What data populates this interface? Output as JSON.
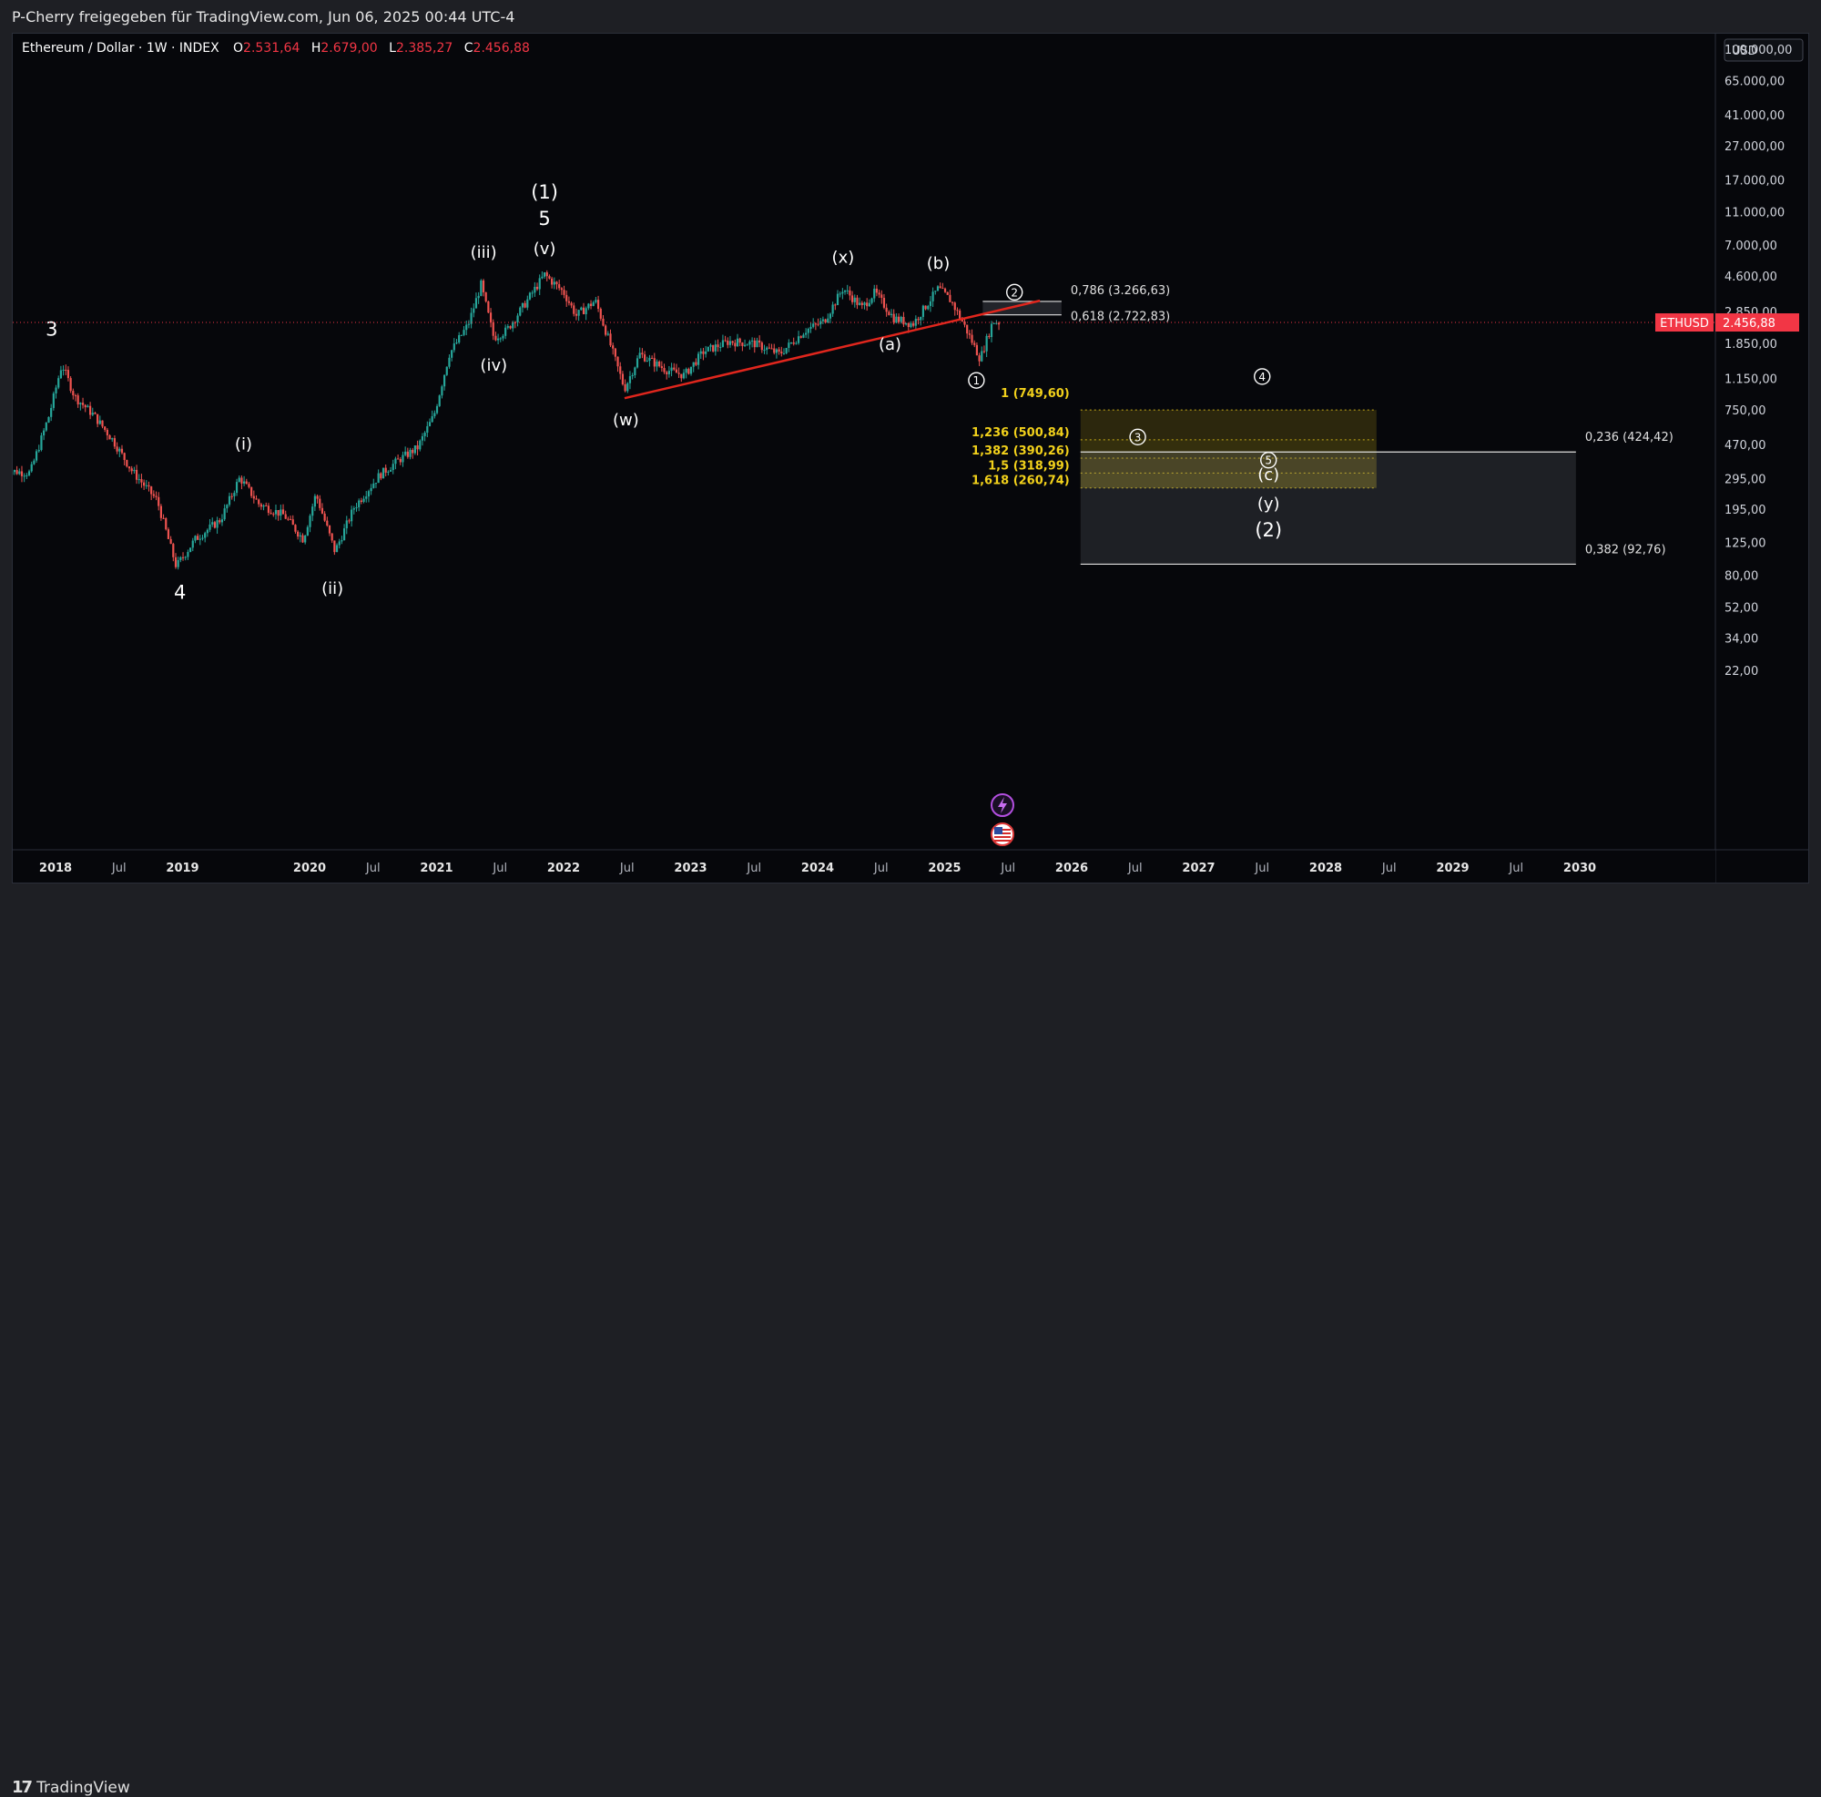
{
  "header": {
    "share_text": "P-Cherry freigegeben für TradingView.com, Jun 06, 2025 00:44 UTC-4"
  },
  "legend": {
    "symbol": "Ethereum / Dollar · 1W · INDEX",
    "o_label": "O",
    "o_value": "2.531,64",
    "h_label": "H",
    "h_value": "2.679,00",
    "l_label": "L",
    "l_value": "2.385,27",
    "c_label": "C",
    "c_value": "2.456,88"
  },
  "currency_button": "USD",
  "brand": {
    "logo": "17",
    "name": "TradingView"
  },
  "colors": {
    "background": "#06070b",
    "up": "#26a69a",
    "down": "#ef5350",
    "trendline": "#e0261d",
    "fib_yellow": "#f2d11b",
    "price_badge": "#f23645"
  },
  "chart_data": {
    "type": "candlestick",
    "title": "Ethereum / Dollar · 1W · INDEX",
    "scale": "log",
    "x_ticks": [
      "2018",
      "Jul",
      "2019",
      "2020",
      "Jul",
      "2021",
      "Jul",
      "2022",
      "Jul",
      "2023",
      "Jul",
      "2024",
      "Jul",
      "2025",
      "Jul",
      "2026",
      "Jul",
      "2027",
      "Jul",
      "2028",
      "Jul",
      "2029",
      "Jul",
      "2030"
    ],
    "x_tick_years": [
      2018.0,
      2018.5,
      2019.0,
      2020.0,
      2020.5,
      2021.0,
      2021.5,
      2022.0,
      2022.5,
      2023.0,
      2023.5,
      2024.0,
      2024.5,
      2025.0,
      2025.5,
      2026.0,
      2026.5,
      2027.0,
      2027.5,
      2028.0,
      2028.5,
      2029.0,
      2029.5,
      2030.0
    ],
    "y_ticks": [
      "100.000,00",
      "65.000,00",
      "41.000,00",
      "27.000,00",
      "17.000,00",
      "11.000,00",
      "7.000,00",
      "4.600,00",
      "2.850,00",
      "1.850,00",
      "1.150,00",
      "750,00",
      "470,00",
      "295,00",
      "195,00",
      "125,00",
      "80,00",
      "52,00",
      "34,00",
      "22,00"
    ],
    "y_tick_values": [
      100000,
      65000,
      41000,
      27000,
      17000,
      11000,
      7000,
      4600,
      2850,
      1850,
      1150,
      750,
      470,
      295,
      195,
      125,
      80,
      52,
      34,
      22
    ],
    "price_path": [
      [
        2017.6,
        330
      ],
      [
        2017.8,
        320
      ],
      [
        2017.95,
        700
      ],
      [
        2018.05,
        1400
      ],
      [
        2018.15,
        900
      ],
      [
        2018.3,
        700
      ],
      [
        2018.45,
        500
      ],
      [
        2018.6,
        330
      ],
      [
        2018.8,
        220
      ],
      [
        2018.95,
        90
      ],
      [
        2019.1,
        130
      ],
      [
        2019.3,
        170
      ],
      [
        2019.45,
        300
      ],
      [
        2019.6,
        210
      ],
      [
        2019.8,
        180
      ],
      [
        2019.95,
        130
      ],
      [
        2020.05,
        240
      ],
      [
        2020.2,
        110
      ],
      [
        2020.35,
        200
      ],
      [
        2020.55,
        310
      ],
      [
        2020.7,
        380
      ],
      [
        2020.85,
        450
      ],
      [
        2020.98,
        700
      ],
      [
        2021.1,
        1600
      ],
      [
        2021.25,
        2400
      ],
      [
        2021.35,
        4100
      ],
      [
        2021.45,
        2000
      ],
      [
        2021.55,
        2200
      ],
      [
        2021.7,
        3200
      ],
      [
        2021.85,
        4700
      ],
      [
        2022.0,
        3700
      ],
      [
        2022.1,
        2700
      ],
      [
        2022.25,
        3300
      ],
      [
        2022.35,
        2000
      ],
      [
        2022.48,
        1000
      ],
      [
        2022.6,
        1600
      ],
      [
        2022.8,
        1300
      ],
      [
        2022.95,
        1200
      ],
      [
        2023.1,
        1650
      ],
      [
        2023.3,
        1900
      ],
      [
        2023.5,
        1850
      ],
      [
        2023.7,
        1600
      ],
      [
        2023.9,
        2200
      ],
      [
        2024.05,
        2500
      ],
      [
        2024.2,
        3900
      ],
      [
        2024.35,
        3000
      ],
      [
        2024.45,
        3700
      ],
      [
        2024.6,
        2600
      ],
      [
        2024.75,
        2400
      ],
      [
        2024.95,
        3900
      ],
      [
        2025.05,
        3300
      ],
      [
        2025.15,
        2400
      ],
      [
        2025.28,
        1500
      ],
      [
        2025.38,
        2500
      ],
      [
        2025.43,
        2456.88
      ]
    ],
    "last_price": {
      "symbol": "ETHUSD",
      "value": "2.456,88",
      "price": 2456.88
    },
    "trendline": {
      "from": [
        2022.48,
        880
      ],
      "to": [
        2025.75,
        3300
      ]
    },
    "fib_retracement_top": [
      {
        "label": "0,786 (3.266,63)",
        "price": 3266.63
      },
      {
        "label": "0,618 (2.722,83)",
        "price": 2722.83
      }
    ],
    "fib_extension": [
      {
        "label": "1 (749,60)",
        "price": 749.6
      },
      {
        "label": "1,236 (500,84)",
        "price": 500.84
      },
      {
        "label": "1,382 (390,26)",
        "price": 390.26
      },
      {
        "label": "1,5 (318,99)",
        "price": 318.99
      },
      {
        "label": "1,618 (260,74)",
        "price": 260.74
      }
    ],
    "fib_retracement_bottom": [
      {
        "label": "0,236 (424,42)",
        "price": 424.42
      },
      {
        "label": "0,382 (92,76)",
        "price": 92.76
      }
    ],
    "wave_labels": [
      {
        "text": "3",
        "year": 2017.97,
        "price": 2050
      },
      {
        "text": "4",
        "year": 2018.98,
        "price": 58
      },
      {
        "text": "(i)",
        "year": 2019.48,
        "price": 440
      },
      {
        "text": "(ii)",
        "year": 2020.18,
        "price": 62
      },
      {
        "text": "(iii)",
        "year": 2021.37,
        "price": 5900
      },
      {
        "text": "(iv)",
        "year": 2021.45,
        "price": 1280
      },
      {
        "text": "(1)",
        "year": 2021.85,
        "price": 13200
      },
      {
        "text": "5",
        "year": 2021.85,
        "price": 9200
      },
      {
        "text": "(v)",
        "year": 2021.85,
        "price": 6200
      },
      {
        "text": "(w)",
        "year": 2022.49,
        "price": 610
      },
      {
        "text": "(x)",
        "year": 2024.2,
        "price": 5500
      },
      {
        "text": "(a)",
        "year": 2024.57,
        "price": 1700
      },
      {
        "text": "(b)",
        "year": 2024.95,
        "price": 5100
      },
      {
        "text": "(c)",
        "year": 2027.55,
        "price": 290
      },
      {
        "text": "(y)",
        "year": 2027.55,
        "price": 195
      },
      {
        "text": "(2)",
        "year": 2027.55,
        "price": 135
      }
    ],
    "circled_labels": [
      {
        "text": "1",
        "year": 2025.25,
        "price": 1120
      },
      {
        "text": "2",
        "year": 2025.55,
        "price": 3700
      },
      {
        "text": "3",
        "year": 2026.52,
        "price": 520
      },
      {
        "text": "4",
        "year": 2027.5,
        "price": 1180
      },
      {
        "text": "5",
        "year": 2027.55,
        "price": 380
      }
    ]
  }
}
